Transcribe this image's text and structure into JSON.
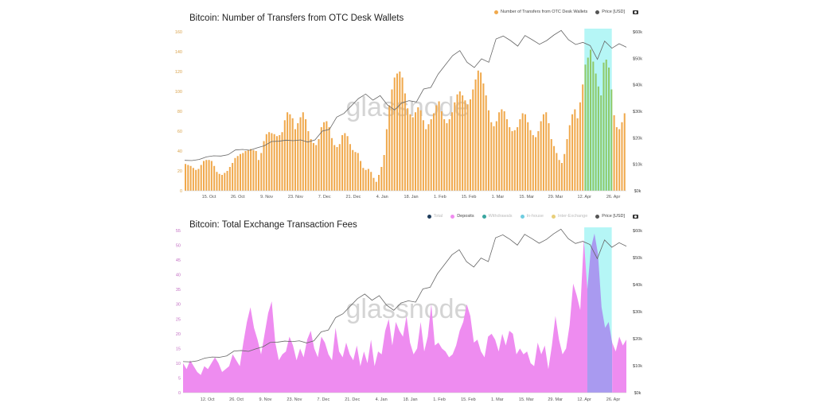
{
  "chart_data": [
    {
      "type": "bar",
      "title": "Bitcoin: Number of Transfers from OTC Desk Wallets",
      "legend": [
        {
          "label": "Number of Transfers from OTC Desk Wallets",
          "color": "#f0a94d"
        },
        {
          "label": "Price [USD]",
          "color": "#555555"
        }
      ],
      "x_ticks": [
        "15. Oct",
        "26. Oct",
        "9. Nov",
        "23. Nov",
        "7. Dec",
        "21. Dec",
        "4. Jan",
        "18. Jan",
        "1. Feb",
        "15. Feb",
        "1. Mar",
        "15. Mar",
        "29. Mar",
        "12. Apr",
        "26. Apr"
      ],
      "y_left_ticks": [
        "0",
        "20",
        "40",
        "60",
        "80",
        "100",
        "120",
        "140",
        "160"
      ],
      "y_right_ticks": [
        "$0k",
        "$10k",
        "$20k",
        "$30k",
        "$40k",
        "$50k",
        "$60k"
      ],
      "ylim_left": [
        0,
        160
      ],
      "ylim_right": [
        0,
        60000
      ],
      "highlight_color": "#a8f4f4",
      "bar_color": "#f0a94d",
      "bar_highlight_color": "#8fca6a",
      "series": [
        {
          "name": "Number of Transfers from OTC Desk Wallets",
          "axis": "left",
          "step": 1,
          "values": [
            27,
            26,
            25,
            23,
            21,
            22,
            26,
            30,
            31,
            31,
            30,
            25,
            19,
            17,
            16,
            18,
            20,
            24,
            28,
            33,
            35,
            37,
            38,
            40,
            41,
            42,
            41,
            40,
            31,
            38,
            50,
            57,
            59,
            58,
            57,
            55,
            56,
            59,
            71,
            79,
            77,
            73,
            62,
            68,
            74,
            79,
            72,
            60,
            52,
            48,
            46,
            52,
            64,
            69,
            70,
            64,
            53,
            46,
            44,
            47,
            56,
            58,
            55,
            47,
            41,
            39,
            38,
            30,
            23,
            21,
            22,
            19,
            13,
            9,
            16,
            24,
            36,
            62,
            86,
            102,
            114,
            118,
            120,
            114,
            98,
            83,
            77,
            74,
            79,
            84,
            81,
            71,
            62,
            67,
            72,
            78,
            86,
            90,
            80,
            72,
            68,
            72,
            79,
            89,
            97,
            100,
            96,
            91,
            87,
            92,
            102,
            112,
            121,
            119,
            108,
            96,
            81,
            69,
            65,
            70,
            79,
            82,
            80,
            72,
            64,
            60,
            61,
            64,
            72,
            78,
            77,
            69,
            61,
            56,
            54,
            60,
            70,
            77,
            79,
            68,
            52,
            45,
            38,
            31,
            28,
            37,
            52,
            66,
            77,
            82,
            73,
            89,
            107,
            127,
            134,
            142,
            130,
            118,
            105,
            96,
            129,
            132,
            124,
            102,
            76,
            64,
            62,
            69,
            78
          ]
        },
        {
          "name": "Price [USD]",
          "axis": "right",
          "step": 4,
          "values": [
            11500,
            11400,
            11800,
            12800,
            13200,
            13100,
            13600,
            15400,
            15600,
            15300,
            16200,
            17000,
            18600,
            18700,
            19100,
            18900,
            19200,
            18400,
            19200,
            22500,
            23200,
            27800,
            29200,
            32000,
            34800,
            36500,
            34200,
            35900,
            32400,
            30500,
            33200,
            34000,
            33500,
            38400,
            39000,
            44000,
            47500,
            51000,
            52900,
            48500,
            46500,
            49800,
            48500,
            57300,
            58400,
            56700,
            54600,
            58600,
            57000,
            55300,
            56700,
            58800,
            60500,
            57000,
            55200,
            56000,
            54800,
            49600,
            56500,
            53800,
            55500,
            54200
          ]
        }
      ]
    },
    {
      "type": "area",
      "title": "Bitcoin: Total Exchange Transaction Fees",
      "legend": [
        {
          "label": "Total",
          "color": "#1f3d5c",
          "active": false
        },
        {
          "label": "Deposits",
          "color": "#f08cf0",
          "active": true
        },
        {
          "label": "Withdrawals",
          "color": "#3aa6a0",
          "active": false
        },
        {
          "label": "In-house",
          "color": "#6fcde0",
          "active": false
        },
        {
          "label": "Inter-Exchange",
          "color": "#e8cf7a",
          "active": false
        },
        {
          "label": "Price [USD]",
          "color": "#555555",
          "active": true
        }
      ],
      "x_ticks": [
        "12. Oct",
        "26. Oct",
        "9. Nov",
        "23. Nov",
        "7. Dec",
        "21. Dec",
        "4. Jan",
        "18. Jan",
        "1. Feb",
        "15. Feb",
        "1. Mar",
        "15. Mar",
        "29. Mar",
        "12. Apr",
        "26. Apr"
      ],
      "y_left_ticks": [
        "0",
        "5",
        "10",
        "15",
        "20",
        "25",
        "30",
        "35",
        "40",
        "45",
        "50",
        "55"
      ],
      "y_right_ticks": [
        "$0k",
        "$10k",
        "$20k",
        "$30k",
        "$40k",
        "$50k",
        "$60k"
      ],
      "ylim_left": [
        0,
        55
      ],
      "ylim_right": [
        0,
        60000
      ],
      "highlight_color": "#a8f4f4",
      "area_color": "#ee8cf0",
      "area_highlight_color": "#a99af0",
      "series": [
        {
          "name": "Deposits",
          "axis": "left",
          "step": 2,
          "values": [
            10,
            8,
            11,
            9,
            7,
            6,
            9,
            8,
            10,
            12,
            10,
            7,
            8,
            9,
            13,
            11,
            9,
            17,
            24,
            29,
            22,
            18,
            13,
            20,
            27,
            31,
            17,
            11,
            13,
            14,
            19,
            16,
            11,
            15,
            12,
            18,
            21,
            15,
            12,
            19,
            17,
            13,
            11,
            22,
            14,
            12,
            17,
            13,
            11,
            16,
            9,
            14,
            10,
            18,
            9,
            14,
            13,
            21,
            25,
            16,
            24,
            21,
            19,
            26,
            17,
            13,
            15,
            24,
            14,
            19,
            30,
            16,
            17,
            15,
            14,
            12,
            13,
            16,
            21,
            24,
            30,
            26,
            17,
            18,
            14,
            12,
            19,
            20,
            18,
            14,
            20,
            16,
            21,
            20,
            13,
            15,
            13,
            14,
            10,
            9,
            17,
            13,
            16,
            8,
            16,
            26,
            18,
            13,
            15,
            23,
            37,
            33,
            28,
            52,
            35,
            49,
            54,
            47,
            29,
            22,
            24,
            17,
            14,
            19,
            16,
            18
          ]
        },
        {
          "name": "Price [USD]",
          "axis": "right",
          "step": 4,
          "values": [
            11500,
            11400,
            11800,
            12800,
            13200,
            13100,
            13600,
            15400,
            15600,
            15300,
            16200,
            17000,
            18600,
            18700,
            19100,
            18900,
            19200,
            18400,
            19200,
            22500,
            23200,
            27800,
            29200,
            32000,
            34800,
            36500,
            34200,
            35900,
            32400,
            30500,
            33200,
            34000,
            33500,
            38400,
            39000,
            44000,
            47500,
            51000,
            52900,
            48500,
            46500,
            49800,
            48500,
            57300,
            58400,
            56700,
            54600,
            58600,
            57000,
            55300,
            56700,
            58800,
            60500,
            57000,
            55200,
            56000,
            54800,
            49600,
            56500,
            53800,
            55500,
            54200
          ]
        }
      ]
    }
  ],
  "watermark": "glassnode"
}
